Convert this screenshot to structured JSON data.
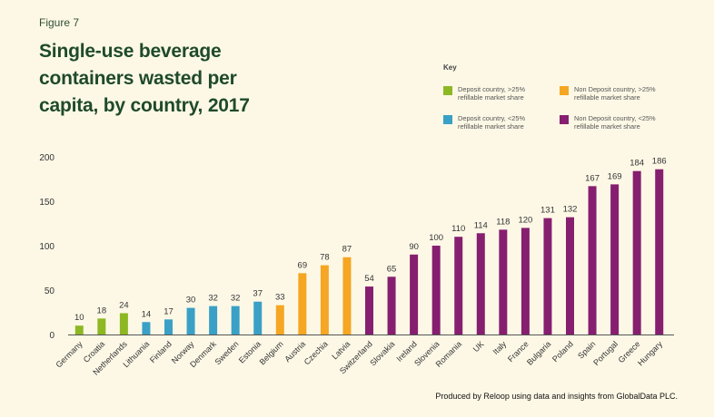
{
  "figure_label": "Figure 7",
  "title": "Single-use beverage containers wasted per capita, by country, 2017",
  "key": {
    "title": "Key",
    "items": [
      {
        "label": "Deposit country, >25%\nrefillable market share",
        "color": "#8db823"
      },
      {
        "label": "Non Deposit country, >25%\nrefillable market share",
        "color": "#f5a623"
      },
      {
        "label": "Deposit country, <25%\nrefillable market share",
        "color": "#3aa0c6"
      },
      {
        "label": "Non Deposit country, <25%\nrefillable market share",
        "color": "#861f6f"
      }
    ]
  },
  "credit": "Produced by Reloop using data and insights from GlobalData PLC.",
  "chart_data": {
    "type": "bar",
    "title": "Single-use beverage containers wasted per capita, by country, 2017",
    "xlabel": "",
    "ylabel": "",
    "ylim": [
      0,
      200
    ],
    "yticks": [
      0,
      50,
      100,
      150,
      200
    ],
    "grid": false,
    "legend_position": "top-right",
    "categories": [
      "Germany",
      "Croatia",
      "Netherlands",
      "Lithuania",
      "Finland",
      "Norway",
      "Denmark",
      "Sweden",
      "Estonia",
      "Belgium",
      "Austria",
      "Czechia",
      "Latvia",
      "Switzerland",
      "Slovakia",
      "Ireland",
      "Slovenia",
      "Romania",
      "UK",
      "Italy",
      "France",
      "Bulgaria",
      "Poland",
      "Spain",
      "Portugal",
      "Greece",
      "Hungary"
    ],
    "values": [
      10,
      18,
      24,
      14,
      17,
      30,
      32,
      32,
      37,
      33,
      69,
      78,
      87,
      54,
      65,
      90,
      100,
      110,
      114,
      118,
      120,
      131,
      132,
      167,
      169,
      184,
      186
    ],
    "groups": [
      0,
      0,
      0,
      2,
      2,
      2,
      2,
      2,
      2,
      1,
      1,
      1,
      1,
      3,
      3,
      3,
      3,
      3,
      3,
      3,
      3,
      3,
      3,
      3,
      3,
      3,
      3
    ]
  }
}
